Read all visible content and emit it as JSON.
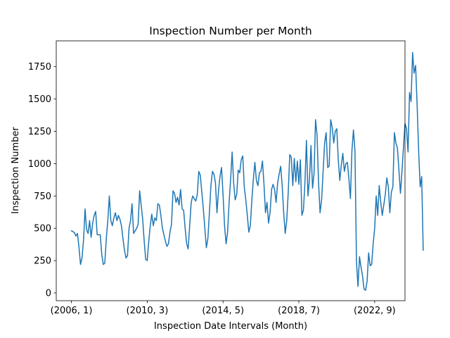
{
  "chart_data": {
    "type": "line",
    "title": "Inspection Number per Month",
    "xlabel": "Inspection Date Intervals (Month)",
    "ylabel": "Inspection Number",
    "x_tick_labels": [
      "(2006, 1)",
      "(2010, 3)",
      "(2014, 5)",
      "(2018, 7)",
      "(2022, 9)"
    ],
    "x_tick_positions": [
      0,
      50,
      100,
      150,
      200
    ],
    "y_ticks": [
      0,
      250,
      500,
      750,
      1000,
      1250,
      1500,
      1750
    ],
    "xlim": [
      -10,
      220
    ],
    "ylim": [
      -60,
      1950
    ],
    "grid": false,
    "legend": "none",
    "series": [
      {
        "color": "#1f77b4",
        "values": [
          480,
          475,
          465,
          440,
          460,
          350,
          220,
          270,
          410,
          650,
          490,
          460,
          560,
          430,
          540,
          600,
          630,
          450,
          450,
          450,
          300,
          220,
          230,
          420,
          560,
          750,
          560,
          520,
          580,
          620,
          560,
          600,
          570,
          520,
          420,
          330,
          270,
          290,
          500,
          560,
          690,
          460,
          480,
          500,
          530,
          790,
          680,
          570,
          400,
          260,
          250,
          400,
          520,
          610,
          520,
          580,
          560,
          690,
          680,
          600,
          500,
          450,
          400,
          360,
          380,
          470,
          530,
          790,
          770,
          700,
          740,
          680,
          800,
          650,
          640,
          500,
          380,
          340,
          520,
          700,
          750,
          730,
          710,
          760,
          940,
          910,
          780,
          650,
          500,
          350,
          420,
          620,
          830,
          940,
          920,
          850,
          620,
          790,
          900,
          970,
          760,
          520,
          380,
          470,
          700,
          880,
          1090,
          850,
          720,
          760,
          950,
          930,
          1030,
          1060,
          820,
          720,
          600,
          470,
          520,
          720,
          880,
          1010,
          870,
          830,
          930,
          940,
          1020,
          840,
          620,
          700,
          540,
          620,
          800,
          840,
          800,
          700,
          850,
          920,
          980,
          830,
          620,
          460,
          560,
          780,
          1070,
          1050,
          830,
          1040,
          860,
          1020,
          840,
          1030,
          600,
          640,
          850,
          1180,
          750,
          880,
          1140,
          810,
          920,
          1340,
          1220,
          850,
          620,
          720,
          940,
          1160,
          1240,
          970,
          980,
          1340,
          1280,
          1160,
          1250,
          1270,
          1030,
          870,
          990,
          1080,
          940,
          1000,
          1010,
          880,
          730,
          1100,
          1260,
          1100,
          240,
          50,
          280,
          200,
          130,
          30,
          20,
          90,
          310,
          210,
          220,
          380,
          500,
          750,
          600,
          830,
          700,
          600,
          680,
          760,
          890,
          820,
          620,
          780,
          820,
          1240,
          1160,
          1120,
          950,
          770,
          940,
          1130,
          1310,
          1270,
          1090,
          1550,
          1480,
          1860,
          1700,
          1760,
          1450,
          1100,
          820,
          900,
          330
        ]
      }
    ]
  }
}
